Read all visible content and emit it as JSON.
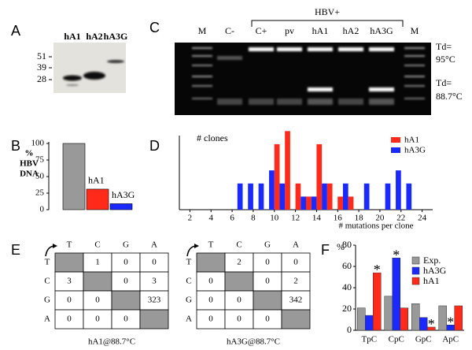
{
  "panel_a": {
    "label": "A",
    "lanes": [
      "hA1",
      "hA2",
      "hA3G"
    ],
    "markers": [
      "51",
      "39",
      "28"
    ]
  },
  "panel_c": {
    "label": "C",
    "lanes": [
      "M",
      "C-",
      "C+",
      "pv",
      "hA1",
      "hA2",
      "hA3G",
      "M"
    ],
    "group_label": "HBV+",
    "bands": [
      {
        "lines": [
          "Td=",
          "95°C"
        ]
      },
      {
        "lines": [
          "Td=",
          "88.7°C"
        ]
      }
    ]
  },
  "panel_e": {
    "label": "E",
    "tables": [
      {
        "columns": [
          "T",
          "C",
          "G",
          "A"
        ],
        "rows": [
          "T",
          "C",
          "G",
          "A"
        ],
        "cells": [
          [
            null,
            1,
            0,
            0
          ],
          [
            3,
            null,
            0,
            3
          ],
          [
            0,
            0,
            null,
            323
          ],
          [
            0,
            0,
            0,
            null
          ]
        ],
        "caption": "hA1@88.7°C"
      },
      {
        "columns": [
          "T",
          "C",
          "G",
          "A"
        ],
        "rows": [
          "T",
          "C",
          "G",
          "A"
        ],
        "cells": [
          [
            null,
            2,
            0,
            0
          ],
          [
            0,
            null,
            0,
            2
          ],
          [
            0,
            0,
            null,
            342
          ],
          [
            0,
            0,
            0,
            null
          ]
        ],
        "caption": "hA3G@88.7°C"
      }
    ]
  },
  "chart_data": [
    {
      "type": "bar",
      "panel_label": "B",
      "y_label": [
        "%",
        "HBV",
        "DNA"
      ],
      "categories": [
        null,
        "hA1",
        "hA3G"
      ],
      "values": [
        100,
        31,
        9
      ],
      "colors": [
        "#999999",
        "#ff2a1a",
        "#1a2aff"
      ],
      "ylim": [
        0,
        100
      ],
      "yticks": [
        0,
        25,
        50,
        75,
        100
      ]
    },
    {
      "type": "histogram",
      "panel_label": "D",
      "y_label": "# clones",
      "x_label": "# mutations per clone",
      "x": [
        7,
        8,
        9,
        10,
        11,
        12,
        13,
        14,
        15,
        16,
        17,
        18,
        19,
        20,
        21,
        22,
        23
      ],
      "series": [
        {
          "name": "hA1",
          "color": "#ff2a1a",
          "values": [
            0,
            0,
            0,
            5,
            6,
            2,
            1,
            5,
            2,
            1,
            1,
            0,
            0,
            0,
            0,
            0,
            0
          ]
        },
        {
          "name": "hA3G",
          "color": "#1a2aff",
          "values": [
            2,
            2,
            2,
            3,
            2,
            0,
            1,
            1,
            2,
            0,
            2,
            0,
            2,
            0,
            2,
            3,
            2
          ]
        }
      ],
      "xlim": [
        1,
        25
      ],
      "xticks": [
        2,
        4,
        6,
        8,
        10,
        12,
        14,
        16,
        18,
        20,
        22,
        24
      ],
      "ylim": [
        0,
        6.5
      ]
    },
    {
      "type": "grouped_bar",
      "panel_label": "F",
      "y_label": "%",
      "categories": [
        "TpC",
        "CpC",
        "GpC",
        "ApC"
      ],
      "series": [
        {
          "name": "Exp.",
          "color": "#999999",
          "values": [
            21,
            32,
            25,
            23
          ]
        },
        {
          "name": "hA3G",
          "color": "#1a2aff",
          "values": [
            14,
            68,
            12,
            5
          ]
        },
        {
          "name": "hA1",
          "color": "#ff2a1a",
          "values": [
            54,
            21,
            3,
            23
          ]
        }
      ],
      "ylim": [
        0,
        80
      ],
      "yticks": [
        0,
        20,
        40,
        60,
        80
      ],
      "annotations": [
        "*",
        "*",
        "*",
        "*"
      ]
    }
  ]
}
